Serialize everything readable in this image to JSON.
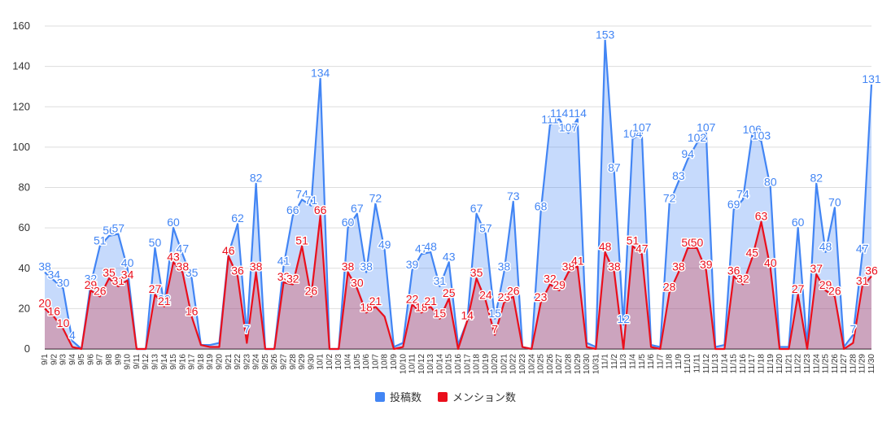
{
  "chart_data": {
    "type": "area",
    "title": "",
    "xlabel": "",
    "ylabel": "",
    "ylim": [
      0,
      160
    ],
    "yticks": [
      0,
      20,
      40,
      60,
      80,
      100,
      120,
      140,
      160
    ],
    "grid": true,
    "legend_position": "bottom",
    "categories": [
      "9/1",
      "9/2",
      "9/3",
      "9/4",
      "9/5",
      "9/6",
      "9/7",
      "9/8",
      "9/9",
      "9/10",
      "9/11",
      "9/12",
      "9/13",
      "9/14",
      "9/15",
      "9/16",
      "9/17",
      "9/18",
      "9/19",
      "9/20",
      "9/21",
      "9/22",
      "9/23",
      "9/24",
      "9/25",
      "9/26",
      "9/27",
      "9/28",
      "9/29",
      "9/30",
      "10/1",
      "10/2",
      "10/3",
      "10/4",
      "10/5",
      "10/6",
      "10/7",
      "10/8",
      "10/9",
      "10/10",
      "10/11",
      "10/12",
      "10/13",
      "10/14",
      "10/15",
      "10/16",
      "10/17",
      "10/18",
      "10/19",
      "10/20",
      "10/21",
      "10/22",
      "10/23",
      "10/24",
      "10/25",
      "10/26",
      "10/27",
      "10/28",
      "10/29",
      "10/30",
      "10/31",
      "11/1",
      "11/2",
      "11/3",
      "11/4",
      "11/5",
      "11/6",
      "11/7",
      "11/8",
      "11/9",
      "11/10",
      "11/11",
      "11/12",
      "11/13",
      "11/14",
      "11/15",
      "11/16",
      "11/17",
      "11/18",
      "11/19",
      "11/20",
      "11/21",
      "11/22",
      "11/23",
      "11/24",
      "11/25",
      "11/26",
      "11/27",
      "11/28",
      "11/29",
      "11/30"
    ],
    "series": [
      {
        "name": "投稿数",
        "color": "#4285F4",
        "fill": "#C6D7F9",
        "values": [
          38,
          34,
          30,
          4,
          0,
          32,
          51,
          56,
          57,
          40,
          0,
          0,
          50,
          22,
          60,
          47,
          35,
          2,
          2,
          3,
          47,
          62,
          7,
          82,
          0,
          0,
          41,
          66,
          74,
          71,
          134,
          0,
          0,
          60,
          67,
          38,
          72,
          49,
          1,
          3,
          39,
          47,
          48,
          31,
          43,
          2,
          14,
          67,
          57,
          15,
          38,
          73,
          1,
          0,
          68,
          111,
          114,
          107,
          114,
          3,
          1,
          153,
          87,
          12,
          104,
          107,
          2,
          1,
          72,
          83,
          94,
          102,
          107,
          1,
          2,
          69,
          74,
          106,
          103,
          80,
          1,
          1,
          60,
          1,
          82,
          48,
          70,
          1,
          7,
          47,
          131
        ],
        "labels": [
          38,
          34,
          30,
          4,
          null,
          32,
          51,
          56,
          57,
          40,
          null,
          null,
          50,
          22,
          60,
          47,
          35,
          null,
          null,
          null,
          null,
          62,
          7,
          82,
          null,
          null,
          41,
          66,
          74,
          71,
          134,
          null,
          null,
          60,
          67,
          38,
          72,
          49,
          null,
          null,
          39,
          47,
          48,
          31,
          43,
          null,
          null,
          67,
          57,
          15,
          38,
          73,
          null,
          null,
          68,
          111,
          114,
          107,
          114,
          null,
          null,
          153,
          87,
          12,
          104,
          107,
          null,
          null,
          72,
          83,
          94,
          102,
          107,
          null,
          null,
          69,
          74,
          106,
          103,
          80,
          null,
          null,
          60,
          null,
          82,
          48,
          70,
          null,
          7,
          47,
          131
        ]
      },
      {
        "name": "メンション数",
        "color": "#EA0F1C",
        "fill": "#C6D7F9",
        "values": [
          20,
          16,
          10,
          1,
          0,
          29,
          26,
          35,
          31,
          34,
          0,
          0,
          27,
          21,
          43,
          38,
          16,
          2,
          1,
          1,
          46,
          36,
          3,
          38,
          0,
          0,
          33,
          32,
          51,
          26,
          66,
          0,
          0,
          38,
          30,
          18,
          21,
          16,
          0,
          1,
          22,
          18,
          21,
          15,
          25,
          0,
          14,
          35,
          24,
          7,
          23,
          26,
          1,
          0,
          23,
          32,
          29,
          38,
          41,
          1,
          0,
          48,
          38,
          0,
          51,
          47,
          1,
          0,
          28,
          38,
          50,
          50,
          39,
          0,
          0,
          36,
          32,
          45,
          63,
          40,
          0,
          0,
          27,
          0,
          37,
          29,
          26,
          0,
          3,
          31,
          36
        ],
        "labels": [
          20,
          16,
          10,
          null,
          null,
          29,
          26,
          35,
          31,
          34,
          null,
          null,
          27,
          21,
          43,
          38,
          16,
          null,
          null,
          null,
          46,
          36,
          null,
          38,
          null,
          null,
          33,
          32,
          51,
          26,
          66,
          null,
          null,
          38,
          30,
          18,
          21,
          null,
          null,
          null,
          22,
          18,
          21,
          15,
          25,
          null,
          14,
          35,
          24,
          7,
          23,
          26,
          null,
          null,
          23,
          32,
          29,
          38,
          41,
          null,
          null,
          48,
          38,
          null,
          51,
          47,
          null,
          null,
          28,
          38,
          50,
          50,
          39,
          null,
          null,
          36,
          32,
          45,
          63,
          40,
          null,
          null,
          27,
          null,
          37,
          29,
          26,
          null,
          null,
          31,
          36
        ]
      }
    ]
  }
}
